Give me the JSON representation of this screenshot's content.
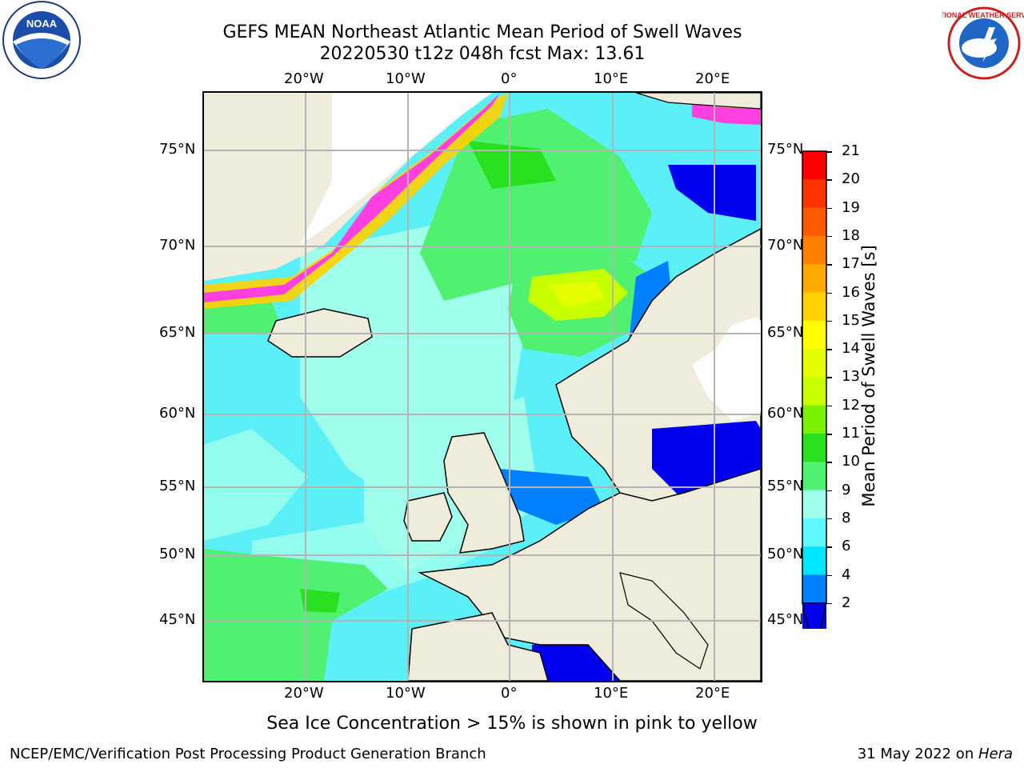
{
  "title": {
    "line1": "GEFS MEAN Northeast Atlantic Mean Period of Swell Waves",
    "line2": "20220530 t12z 048h fcst   Max: 13.61"
  },
  "logos": {
    "noaa_text": "NOAA",
    "nws_text": "NATIONAL WEATHER SERVICE"
  },
  "axes": {
    "lon_top": [
      "20°W",
      "10°W",
      "0°",
      "10°E",
      "20°E"
    ],
    "lon_bottom": [
      "20°W",
      "10°W",
      "0°",
      "10°E",
      "20°E"
    ],
    "lat_left": [
      "75°N",
      "70°N",
      "65°N",
      "60°N",
      "55°N",
      "50°N",
      "45°N"
    ],
    "lat_right": [
      "75°N",
      "70°N",
      "65°N",
      "60°N",
      "55°N",
      "50°N",
      "45°N"
    ]
  },
  "colorbar": {
    "label": "Mean Period of Swell Waves [s]",
    "ticks": [
      "21",
      "20",
      "19",
      "18",
      "17",
      "16",
      "15",
      "14",
      "13",
      "12",
      "11",
      "10",
      "9",
      "8",
      "6",
      "4",
      "2"
    ],
    "colors": [
      "#ff0000",
      "#ff3300",
      "#ff5a00",
      "#ff8000",
      "#ffaa00",
      "#ffd200",
      "#ffff00",
      "#e6ff00",
      "#c8ff00",
      "#78f000",
      "#28e020",
      "#50f070",
      "#a0ffec",
      "#60f8ff",
      "#00e5ff",
      "#0080ff",
      "#0000ee"
    ]
  },
  "colors": {
    "land": "#efecdc",
    "ocean_base": "#5bf0f7",
    "ice_pink": "#ff40e0",
    "grid": "#b4b4b4"
  },
  "caption": "Sea Ice Concentration > 15% is shown in pink to yellow",
  "footer": {
    "left": "NCEP/EMC/Verification Post Processing Product Generation Branch",
    "right_date": "31 May 2022 on ",
    "right_host": "Hera"
  }
}
